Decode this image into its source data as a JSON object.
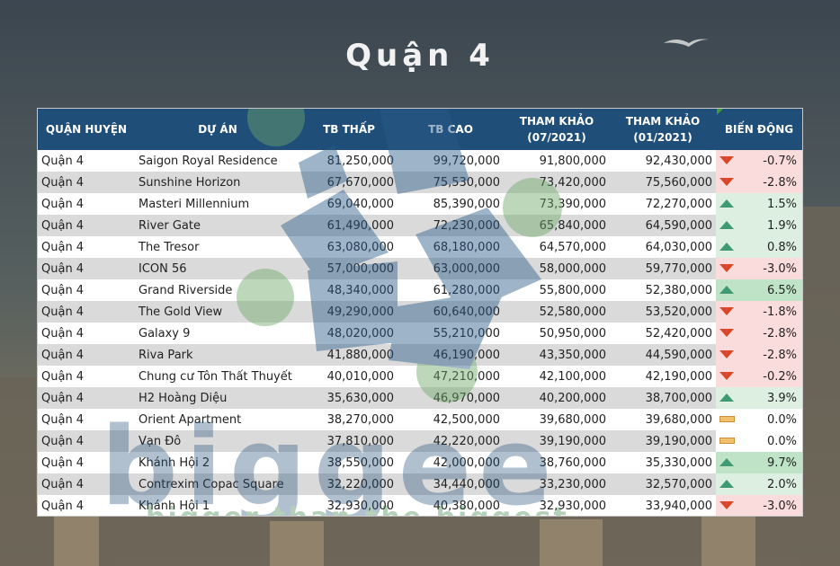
{
  "title": "Quận 4",
  "headers": {
    "district": "QUẬN HUYỆN",
    "project": "DỰ ÁN",
    "low": "TB THẤP",
    "high": "TB CAO",
    "ref1_line1": "THAM KHẢO",
    "ref1_line2": "(07/2021)",
    "ref2_line1": "THAM KHẢO",
    "ref2_line2": "(01/2021)",
    "change": "BIẾN ĐỘNG"
  },
  "watermark": {
    "brand": "biggee",
    "slogan": "bigger than the biggest"
  },
  "colors": {
    "header_bg": "#1f4e79",
    "down_arrow": "#d9472b",
    "up_arrow": "#3f9a73",
    "flat_marker": "#f2c06a"
  },
  "rows": [
    {
      "district": "Quận 4",
      "project": "Saigon Royal Residence",
      "low": "81,250,000",
      "high": "99,720,000",
      "ref1": "91,800,000",
      "ref2": "92,430,000",
      "change": "-0.7%",
      "trend": "down",
      "icon": "down-arrow-icon"
    },
    {
      "district": "Quận 4",
      "project": "Sunshine Horizon",
      "low": "67,670,000",
      "high": "75,530,000",
      "ref1": "73,420,000",
      "ref2": "75,560,000",
      "change": "-2.8%",
      "trend": "down",
      "icon": "down-arrow-icon"
    },
    {
      "district": "Quận 4",
      "project": "Masteri Millennium",
      "low": "69,040,000",
      "high": "85,390,000",
      "ref1": "73,390,000",
      "ref2": "72,270,000",
      "change": "1.5%",
      "trend": "up",
      "icon": "up-arrow-icon"
    },
    {
      "district": "Quận 4",
      "project": "River Gate",
      "low": "61,490,000",
      "high": "72,230,000",
      "ref1": "65,840,000",
      "ref2": "64,590,000",
      "change": "1.9%",
      "trend": "up",
      "icon": "up-arrow-icon"
    },
    {
      "district": "Quận 4",
      "project": "The Tresor",
      "low": "63,080,000",
      "high": "68,180,000",
      "ref1": "64,570,000",
      "ref2": "64,030,000",
      "change": "0.8%",
      "trend": "up",
      "icon": "up-arrow-icon"
    },
    {
      "district": "Quận 4",
      "project": "ICON 56",
      "low": "57,000,000",
      "high": "63,000,000",
      "ref1": "58,000,000",
      "ref2": "59,770,000",
      "change": "-3.0%",
      "trend": "down",
      "icon": "down-arrow-icon"
    },
    {
      "district": "Quận 4",
      "project": "Grand Riverside",
      "low": "48,340,000",
      "high": "61,280,000",
      "ref1": "55,800,000",
      "ref2": "52,380,000",
      "change": "6.5%",
      "trend": "up",
      "icon": "up-arrow-icon"
    },
    {
      "district": "Quận 4",
      "project": "The Gold View",
      "low": "49,290,000",
      "high": "60,640,000",
      "ref1": "52,580,000",
      "ref2": "53,520,000",
      "change": "-1.8%",
      "trend": "down",
      "icon": "down-arrow-icon"
    },
    {
      "district": "Quận 4",
      "project": "Galaxy 9",
      "low": "48,020,000",
      "high": "55,210,000",
      "ref1": "50,950,000",
      "ref2": "52,420,000",
      "change": "-2.8%",
      "trend": "down",
      "icon": "down-arrow-icon"
    },
    {
      "district": "Quận 4",
      "project": "Riva Park",
      "low": "41,880,000",
      "high": "46,190,000",
      "ref1": "43,350,000",
      "ref2": "44,590,000",
      "change": "-2.8%",
      "trend": "down",
      "icon": "down-arrow-icon"
    },
    {
      "district": "Quận 4",
      "project": "Chung cư Tôn Thất Thuyết",
      "low": "40,010,000",
      "high": "47,210,000",
      "ref1": "42,100,000",
      "ref2": "42,190,000",
      "change": "-0.2%",
      "trend": "down",
      "icon": "down-arrow-icon"
    },
    {
      "district": "Quận 4",
      "project": "H2 Hoàng Diệu",
      "low": "35,630,000",
      "high": "46,970,000",
      "ref1": "40,200,000",
      "ref2": "38,700,000",
      "change": "3.9%",
      "trend": "up",
      "icon": "up-arrow-icon"
    },
    {
      "district": "Quận 4",
      "project": "Orient Apartment",
      "low": "38,270,000",
      "high": "42,500,000",
      "ref1": "39,680,000",
      "ref2": "39,680,000",
      "change": "0.0%",
      "trend": "flat",
      "icon": "flat-bar-icon"
    },
    {
      "district": "Quận 4",
      "project": "Vạn Đô",
      "low": "37,810,000",
      "high": "42,220,000",
      "ref1": "39,190,000",
      "ref2": "39,190,000",
      "change": "0.0%",
      "trend": "flat",
      "icon": "flat-bar-icon"
    },
    {
      "district": "Quận 4",
      "project": "Khánh Hội 2",
      "low": "38,550,000",
      "high": "42,000,000",
      "ref1": "38,760,000",
      "ref2": "35,330,000",
      "change": "9.7%",
      "trend": "up",
      "icon": "up-arrow-icon"
    },
    {
      "district": "Quận 4",
      "project": "Contrexim Copac Square",
      "low": "32,220,000",
      "high": "34,440,000",
      "ref1": "33,230,000",
      "ref2": "32,570,000",
      "change": "2.0%",
      "trend": "up",
      "icon": "up-arrow-icon"
    },
    {
      "district": "Quận 4",
      "project": "Khánh Hội 1",
      "low": "32,930,000",
      "high": "40,380,000",
      "ref1": "32,930,000",
      "ref2": "33,940,000",
      "change": "-3.0%",
      "trend": "down",
      "icon": "down-arrow-icon"
    }
  ]
}
